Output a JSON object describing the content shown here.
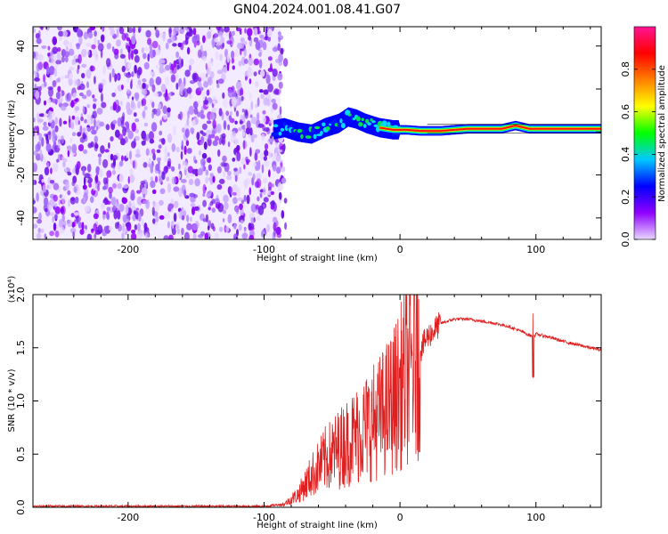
{
  "title": "GN04.2024.001.08.41.G07",
  "colors": {
    "spectrogram_noise": "#7a1fe8",
    "snr_line": "#e02020",
    "axis": "#000000"
  },
  "chart_data": [
    {
      "type": "heatmap",
      "name": "spectrogram",
      "xlabel": "Height of straight line (km)",
      "ylabel": "Frequency (Hz)",
      "xlim": [
        -270,
        148
      ],
      "ylim": [
        -50,
        49
      ],
      "xticks": [
        -200,
        -100,
        0,
        100
      ],
      "xtick_labels": [
        "-200",
        "-100",
        "0",
        "100"
      ],
      "yticks": [
        -40,
        -20,
        0,
        20,
        40
      ],
      "ytick_labels": [
        "-40",
        "-20",
        "0",
        "20",
        "40"
      ],
      "noise_region_x": [
        -270,
        -88
      ],
      "signal_ridge": {
        "x": [
          -93,
          -85,
          -75,
          -65,
          -55,
          -45,
          -38,
          -32,
          -25,
          -15,
          -5,
          5,
          15,
          30,
          50,
          75,
          85,
          95,
          110,
          148
        ],
        "freq": [
          1,
          2,
          0,
          -1,
          2,
          4,
          7,
          6,
          4,
          2,
          1,
          1,
          0.5,
          0.5,
          1.5,
          1.5,
          3,
          1.5,
          1.5,
          1.5
        ]
      },
      "colorbar": {
        "label": "Normalized spectral amplitude",
        "range": [
          0,
          1
        ],
        "ticks": [
          0.0,
          0.2,
          0.4,
          0.6,
          0.8
        ],
        "tick_labels": [
          "0.0",
          "0.2",
          "0.4",
          "0.6",
          "0.8"
        ],
        "stops": [
          "#e8d8ff",
          "#8f00ff",
          "#0000ff",
          "#00c8ff",
          "#00ff00",
          "#ffff00",
          "#ff8000",
          "#ff0000",
          "#ff1493"
        ]
      }
    },
    {
      "type": "line",
      "name": "snr",
      "xlabel": "Height of straight line (km)",
      "ylabel": "SNR (10 * v/v)",
      "yscale_label": "(x10⁴)",
      "xlim": [
        -270,
        148
      ],
      "ylim": [
        0,
        2.0
      ],
      "xticks": [
        -200,
        -100,
        0,
        100
      ],
      "xtick_labels": [
        "-200",
        "-100",
        "0",
        "100"
      ],
      "yticks": [
        0.0,
        0.5,
        1.0,
        1.5,
        2.0
      ],
      "ytick_labels": [
        "0.0",
        "0.5",
        "1.0",
        "1.5",
        "2.0"
      ],
      "series": [
        {
          "x": [
            -270,
            -200,
            -150,
            -100,
            -85,
            -75,
            -65,
            -55,
            -45,
            -35,
            -25,
            -15,
            -5,
            5,
            12,
            20,
            30,
            40,
            50,
            60,
            70,
            80,
            90,
            95,
            98,
            100,
            110,
            120,
            130,
            140,
            148
          ],
          "values": [
            0.01,
            0.01,
            0.01,
            0.01,
            0.03,
            0.12,
            0.3,
            0.45,
            0.55,
            0.65,
            0.75,
            0.85,
            1.0,
            1.25,
            1.4,
            1.6,
            1.73,
            1.77,
            1.77,
            1.75,
            1.73,
            1.7,
            1.65,
            1.62,
            1.6,
            1.63,
            1.6,
            1.56,
            1.53,
            1.5,
            1.48
          ]
        }
      ]
    }
  ]
}
